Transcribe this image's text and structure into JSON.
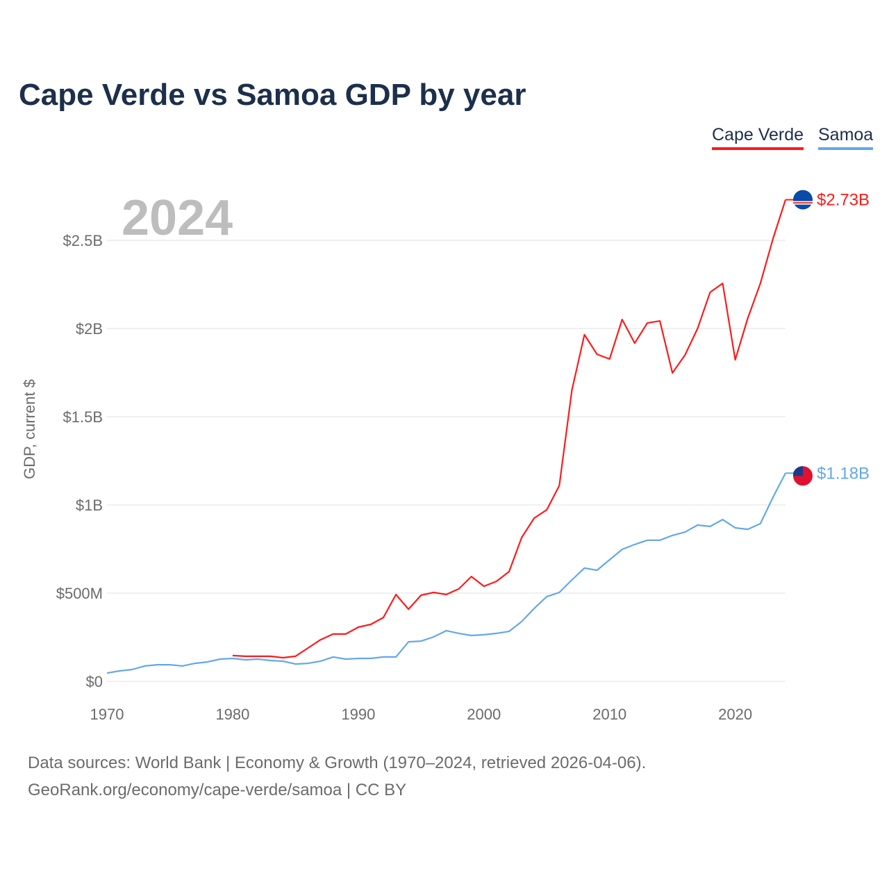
{
  "chart_data": {
    "type": "line",
    "title": "Cape Verde vs Samoa GDP by year",
    "year_label": "2024",
    "ylabel": "GDP, current $",
    "xlabel": "",
    "xlim": [
      1970,
      2024
    ],
    "ylim": [
      0,
      2.75
    ],
    "y_unit": "billion USD",
    "grid": true,
    "legend_position": "top-right",
    "x_ticks": [
      1970,
      1980,
      1990,
      2000,
      2010,
      2020
    ],
    "x_tick_labels": [
      "1970",
      "1980",
      "1990",
      "2000",
      "2010",
      "2020"
    ],
    "y_ticks": [
      0,
      0.5,
      1,
      1.5,
      2,
      2.5
    ],
    "y_tick_labels": [
      "$0",
      "$500M",
      "$1B",
      "$1.5B",
      "$2B",
      "$2.5B"
    ],
    "series": [
      {
        "name": "Cape Verde",
        "color": "#ff1a1a",
        "end_label": "$2.73B",
        "x_start": 1980,
        "values": [
          0.146,
          0.142,
          0.142,
          0.142,
          0.134,
          0.142,
          0.189,
          0.236,
          0.268,
          0.268,
          0.307,
          0.323,
          0.362,
          0.492,
          0.409,
          0.488,
          0.504,
          0.492,
          0.524,
          0.594,
          0.539,
          0.567,
          0.622,
          0.815,
          0.925,
          0.972,
          1.11,
          1.65,
          1.965,
          1.854,
          1.827,
          2.051,
          1.917,
          2.031,
          2.043,
          1.748,
          1.85,
          2.0,
          2.205,
          2.256,
          1.823,
          2.059,
          2.256,
          2.508,
          2.73
        ]
      },
      {
        "name": "Samoa",
        "color": "#62a8ea",
        "end_label": "$1.18B",
        "x_start": 1970,
        "values": [
          0.047,
          0.059,
          0.067,
          0.087,
          0.094,
          0.094,
          0.087,
          0.102,
          0.11,
          0.126,
          0.13,
          0.122,
          0.126,
          0.118,
          0.114,
          0.098,
          0.102,
          0.114,
          0.138,
          0.126,
          0.13,
          0.13,
          0.138,
          0.138,
          0.224,
          0.228,
          0.252,
          0.287,
          0.272,
          0.26,
          0.264,
          0.272,
          0.283,
          0.339,
          0.413,
          0.48,
          0.504,
          0.575,
          0.642,
          0.63,
          0.689,
          0.748,
          0.776,
          0.8,
          0.8,
          0.827,
          0.846,
          0.886,
          0.878,
          0.917,
          0.87,
          0.862,
          0.894,
          1.043,
          1.18
        ]
      }
    ]
  },
  "footer": {
    "line1": "Data sources: World Bank | Economy & Growth (1970–2024, retrieved 2026-04-06).",
    "line2": "GeoRank.org/economy/cape-verde/samoa | CC BY"
  }
}
